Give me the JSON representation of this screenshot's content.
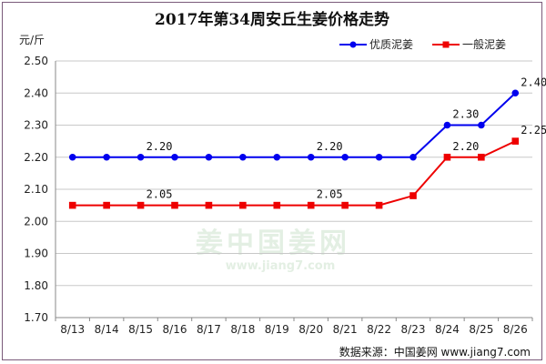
{
  "chart_data": {
    "type": "line",
    "title": "2017年第34周安丘生姜价格走势",
    "ylabel": "元/斤",
    "xlabel": "",
    "categories": [
      "8/13",
      "8/14",
      "8/15",
      "8/16",
      "8/17",
      "8/18",
      "8/19",
      "8/20",
      "8/21",
      "8/22",
      "8/23",
      "8/24",
      "8/25",
      "8/26"
    ],
    "ylim": [
      1.7,
      2.5
    ],
    "yticks": [
      "1.70",
      "1.80",
      "1.90",
      "2.00",
      "2.10",
      "2.20",
      "2.30",
      "2.40",
      "2.50"
    ],
    "grid": "horizontal",
    "legend_position": "top-right",
    "series": [
      {
        "name": "优质泥姜",
        "color": "#0000ee",
        "marker": "circle",
        "values": [
          2.2,
          2.2,
          2.2,
          2.2,
          2.2,
          2.2,
          2.2,
          2.2,
          2.2,
          2.2,
          2.2,
          2.3,
          2.3,
          2.4
        ],
        "labels": [
          {
            "index": 2,
            "text": "2.20"
          },
          {
            "index": 7,
            "text": "2.20"
          },
          {
            "index": 11,
            "text": "2.30"
          },
          {
            "index": 13,
            "text": "2.40"
          }
        ]
      },
      {
        "name": "一般泥姜",
        "color": "#ee0000",
        "marker": "square",
        "values": [
          2.05,
          2.05,
          2.05,
          2.05,
          2.05,
          2.05,
          2.05,
          2.05,
          2.05,
          2.05,
          2.08,
          2.2,
          2.2,
          2.25
        ],
        "labels": [
          {
            "index": 2,
            "text": "2.05"
          },
          {
            "index": 7,
            "text": "2.05"
          },
          {
            "index": 11,
            "text": "2.20"
          },
          {
            "index": 13,
            "text": "2.25"
          }
        ]
      }
    ],
    "source": "数据来源：中国姜网 www.jiang7.com"
  },
  "watermark": {
    "main": "姜中国姜网",
    "url": "www.jiang7.com"
  }
}
